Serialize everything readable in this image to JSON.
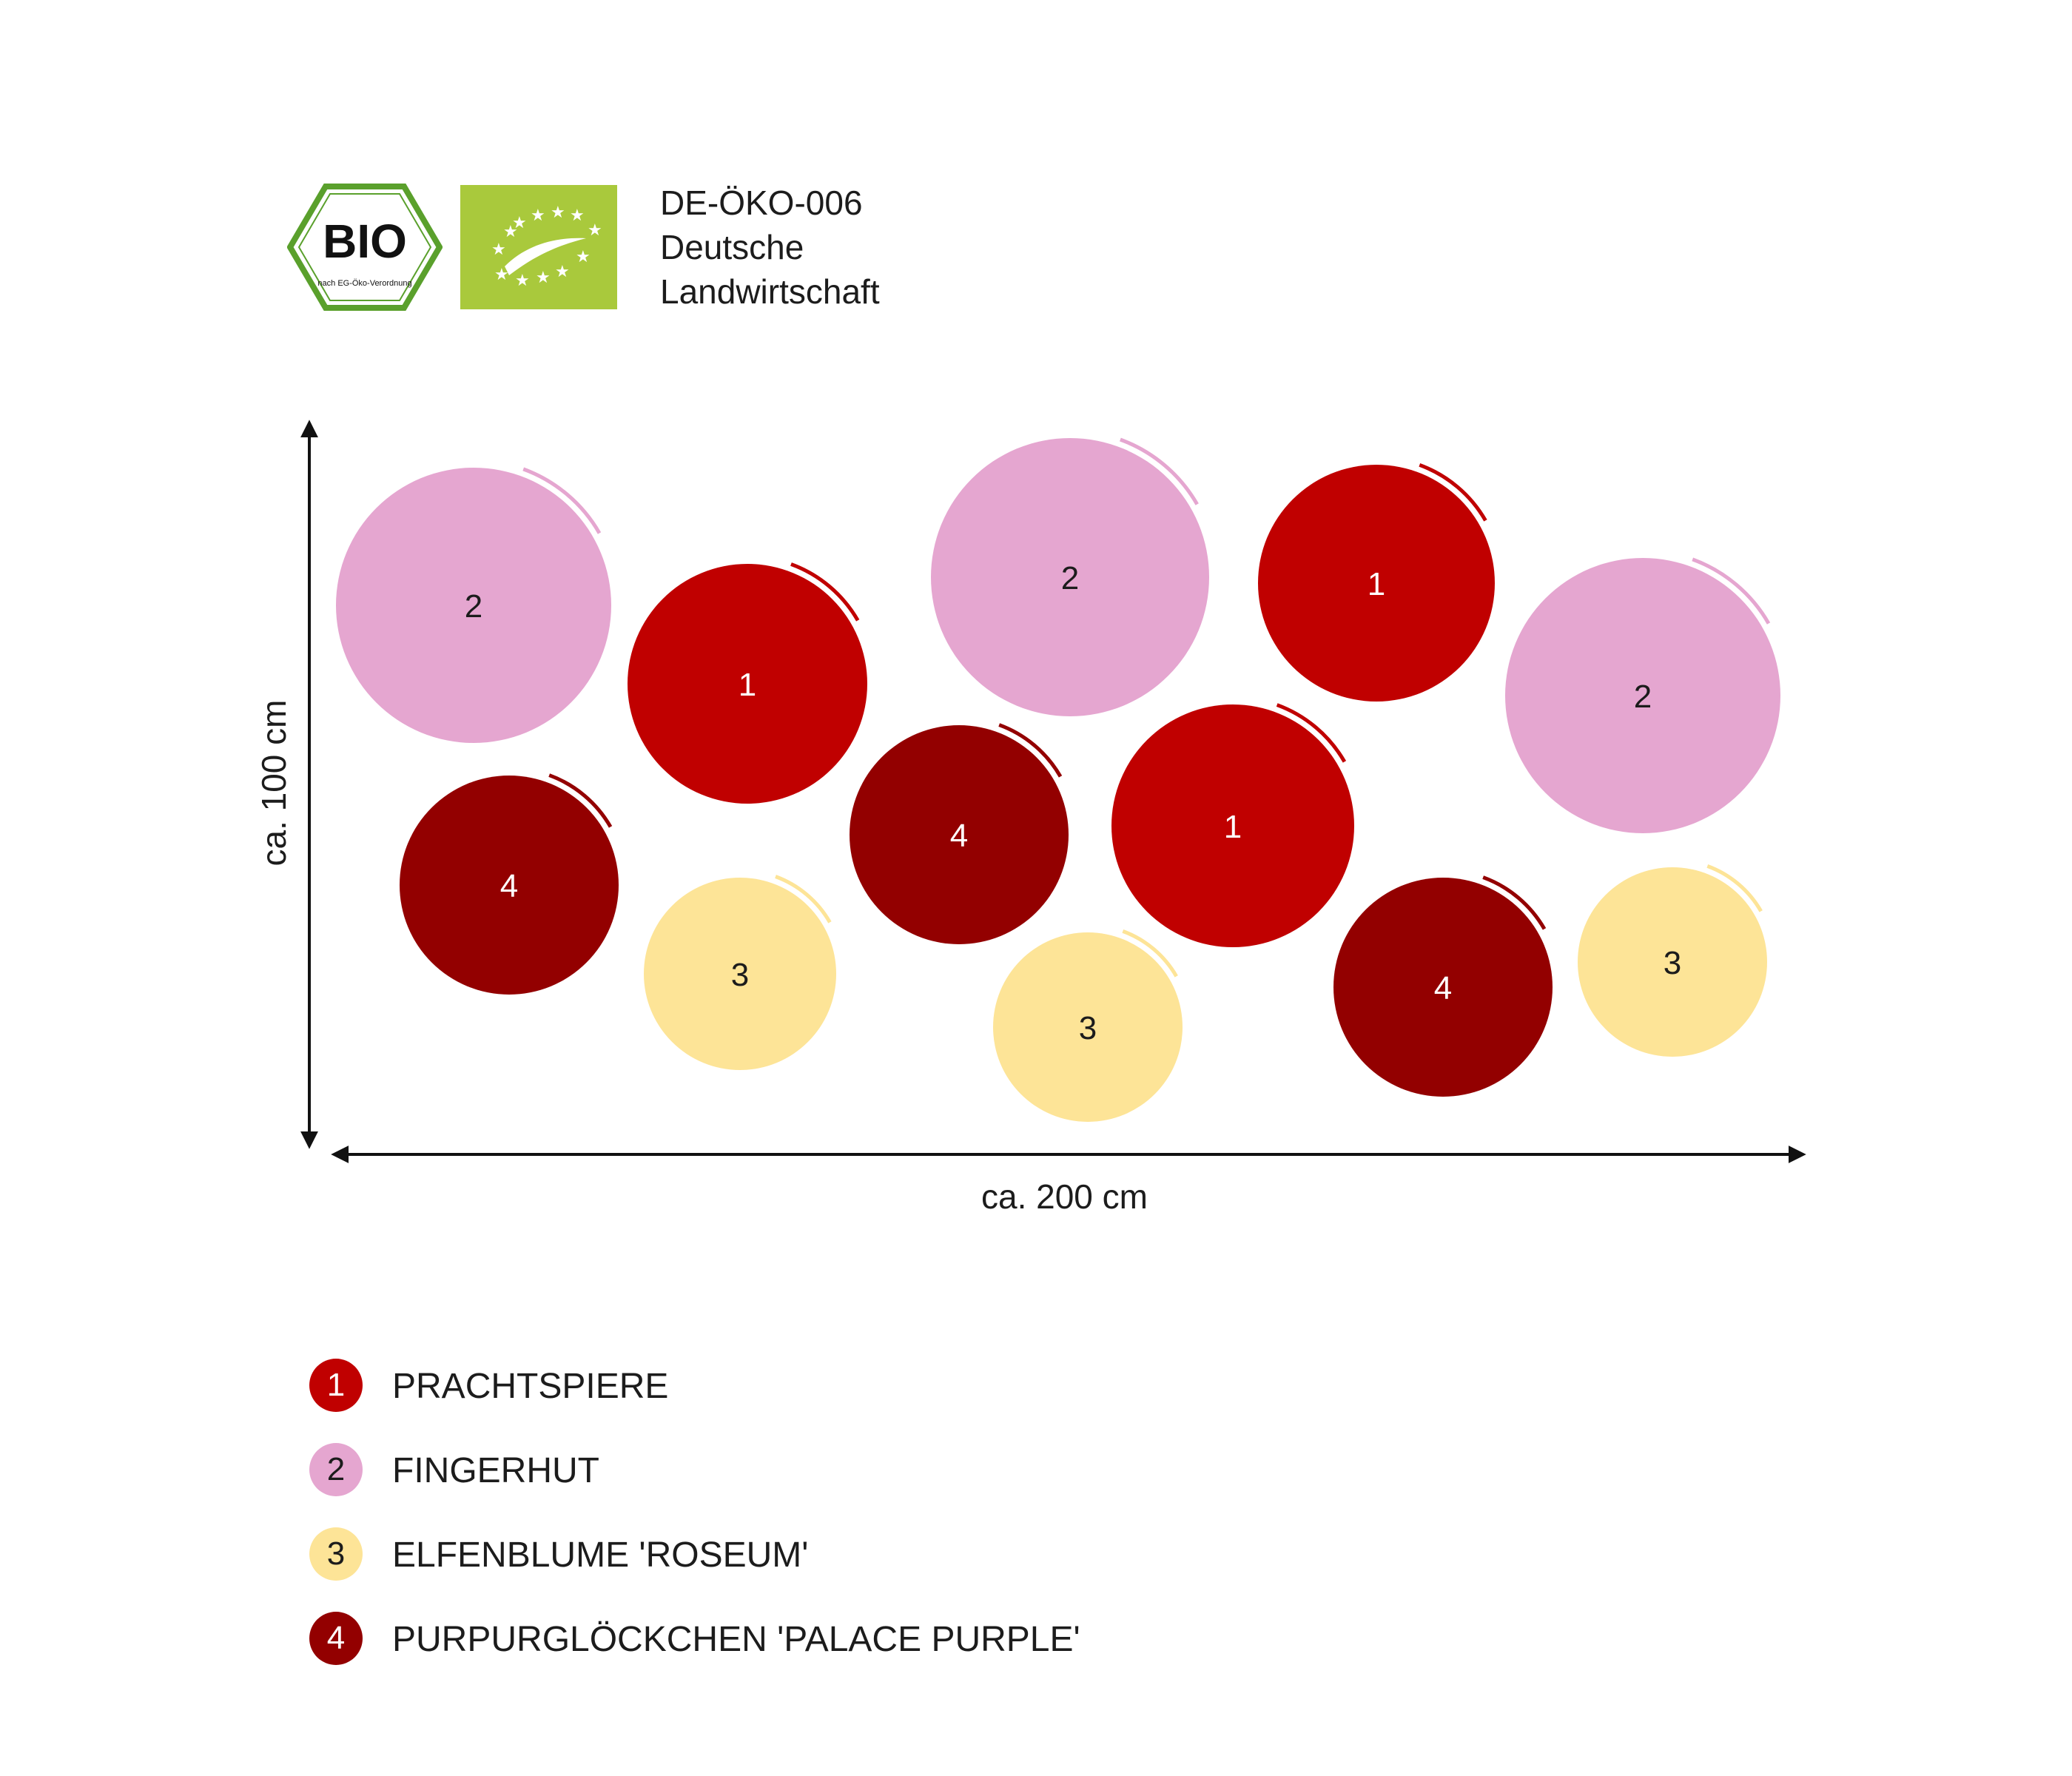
{
  "certification": {
    "bio_seal_text": "BIO",
    "bio_seal_subtext": "nach EG-Öko-Verordnung",
    "control_code": "DE-ÖKO-006",
    "origin_line1": "Deutsche",
    "origin_line2": "Landwirtschaft"
  },
  "dimensions": {
    "height_label": "ca. 100 cm",
    "width_label": "ca. 200 cm"
  },
  "plants": [
    {
      "number": "1",
      "name": "PRACHTSPIERE",
      "color": "#c00000",
      "text_color": "#ffffff"
    },
    {
      "number": "2",
      "name": "FINGERHUT",
      "color": "#e5a6d0",
      "text_color": "#1c1c1c"
    },
    {
      "number": "3",
      "name": "ELFENBLUME  'ROSEUM'",
      "color": "#fde497",
      "text_color": "#1c1c1c"
    },
    {
      "number": "4",
      "name": "PURPURGLÖCKCHEN 'PALACE PURPLE'",
      "color": "#930000",
      "text_color": "#ffffff"
    }
  ],
  "bed_positions": [
    {
      "plant": "2",
      "label": "2"
    },
    {
      "plant": "1",
      "label": "1"
    },
    {
      "plant": "2",
      "label": "2"
    },
    {
      "plant": "1",
      "label": "1"
    },
    {
      "plant": "2",
      "label": "2"
    },
    {
      "plant": "4",
      "label": "4"
    },
    {
      "plant": "3",
      "label": "3"
    },
    {
      "plant": "4",
      "label": "4"
    },
    {
      "plant": "1",
      "label": "1"
    },
    {
      "plant": "3",
      "label": "3"
    },
    {
      "plant": "4",
      "label": "4"
    },
    {
      "plant": "3",
      "label": "3"
    }
  ]
}
